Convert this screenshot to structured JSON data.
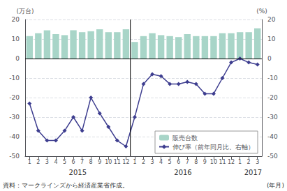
{
  "chart_data": {
    "type": "bar",
    "ylabel": "(万台)",
    "y2label": "(%)",
    "xlabel": "(年月)",
    "source": "資料：マークラインズから経済産業省作成。",
    "categories": [
      "1",
      "2",
      "3",
      "4",
      "5",
      "6",
      "7",
      "8",
      "9",
      "10",
      "11",
      "12",
      "1",
      "2",
      "3",
      "4",
      "5",
      "6",
      "7",
      "8",
      "9",
      "10",
      "11",
      "12",
      "1",
      "2",
      "3"
    ],
    "series": [
      {
        "name": "販売台数",
        "type": "bar",
        "color": "#a8d5c8",
        "values": [
          11.5,
          13.0,
          14.5,
          12.5,
          12.0,
          14.5,
          13.5,
          14.0,
          15.0,
          13.5,
          13.5,
          15.0,
          8.5,
          11.5,
          13.0,
          12.0,
          11.5,
          11.0,
          12.5,
          11.5,
          11.5,
          11.5,
          13.0,
          13.0,
          13.5,
          13.5,
          15.5
        ]
      },
      {
        "name": "伸び率（前年同月比、右軸）",
        "type": "line",
        "axis": "y2",
        "color": "#3d3d8f",
        "marker": "diamond",
        "values": [
          -23,
          -37,
          -42,
          -42,
          -37,
          -30,
          -37,
          -20,
          -28,
          -35,
          -42,
          -45,
          -30,
          -13,
          -8,
          -9,
          -13,
          -13,
          -12,
          -13,
          -18,
          -18,
          -10,
          -2,
          0,
          -2,
          -3
        ]
      }
    ],
    "ylim": [
      -50,
      20
    ],
    "yticks": [
      -50,
      -40,
      -30,
      -20,
      -10,
      0,
      10,
      20
    ],
    "y2lim": [
      -50,
      20
    ],
    "y2ticks": [
      -50,
      -40,
      -30,
      -20,
      -10,
      0,
      10,
      20
    ],
    "grid": true,
    "legend": "lower right",
    "annotations": [
      {
        "text": "2015",
        "x": 5.5
      },
      {
        "text": "2016",
        "x": 17.5
      },
      {
        "text": "2017",
        "x": 25.5
      }
    ],
    "vlines": [
      11.5
    ],
    "hlines": [
      0
    ]
  }
}
